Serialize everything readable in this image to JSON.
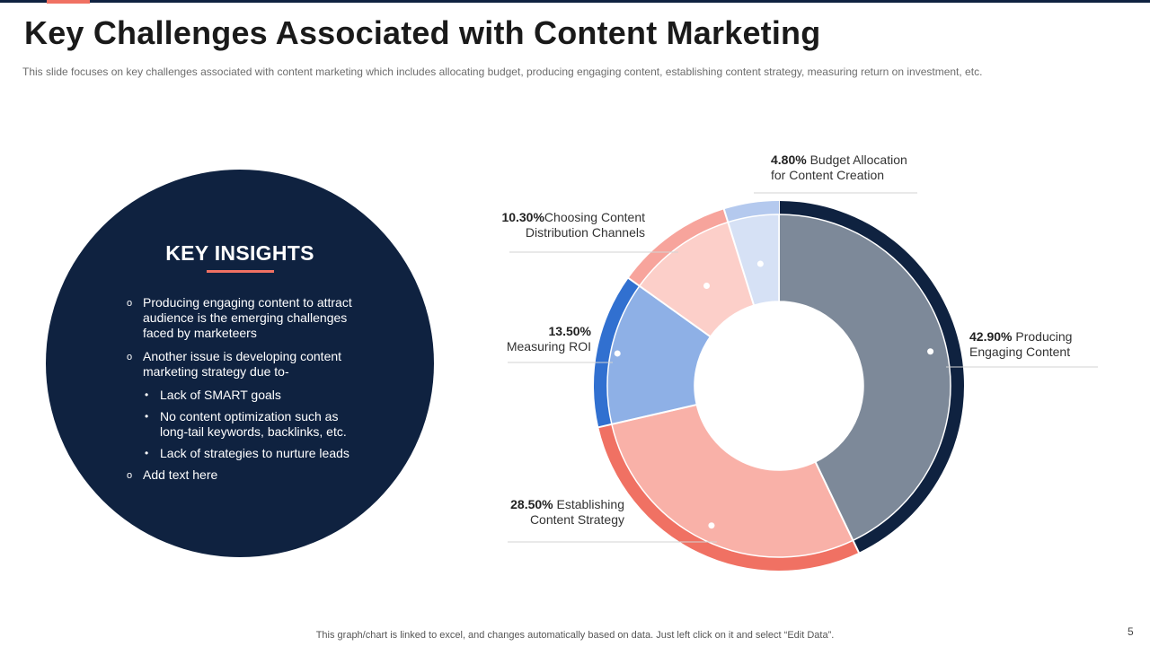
{
  "slide": {
    "title": "Key Challenges Associated with Content Marketing",
    "subtitle": "This slide focuses on key challenges associated with content marketing which includes allocating budget, producing engaging content, establishing content strategy, measuring return on investment, etc.",
    "footer": "This graph/chart is linked to excel,  and changes automatically based on data. Just left click on it and select “Edit Data”.",
    "page_number": "5",
    "colors": {
      "navy": "#0f2240",
      "coral": "#f07163"
    }
  },
  "insights": {
    "title": "KEY INSIGHTS",
    "items": [
      {
        "text": "Producing engaging content to attract audience is the emerging challenges faced by marketeers",
        "level": 1
      },
      {
        "text": "Another issue is developing content marketing strategy due to-",
        "level": 1
      },
      {
        "text": "Lack of SMART goals",
        "level": 2
      },
      {
        "text": "No content optimization such as long-tail keywords, backlinks, etc.",
        "level": 2
      },
      {
        "text": "Lack of strategies to nurture leads",
        "level": 2
      },
      {
        "text": "Add text here",
        "level": 1
      }
    ],
    "bullet_level1": "o",
    "bullet_level2": "•"
  },
  "chart_data": {
    "type": "pie",
    "categories": [
      "Producing Engaging Content",
      "Establishing Content Strategy",
      "Measuring ROI",
      "Choosing Content Distribution Channels",
      "Budget Allocation for Content Creation"
    ],
    "values": [
      42.9,
      28.5,
      13.5,
      10.3,
      4.8
    ],
    "labels": [
      {
        "pct": "42.90%",
        "lines": [
          " Producing",
          "Engaging Content"
        ]
      },
      {
        "pct": "28.50%",
        "lines": [
          " Establishing",
          "Content Strategy"
        ]
      },
      {
        "pct": "13.50%",
        "lines": [
          "",
          "Measuring ROI"
        ]
      },
      {
        "pct": "10.30%",
        "lines": [
          "Choosing Content",
          "Distribution Channels"
        ]
      },
      {
        "pct": "4.80%",
        "lines": [
          " Budget Allocation",
          "for Content Creation"
        ]
      }
    ],
    "slice_colors": [
      "#7d8999",
      "#f9b1a8",
      "#8eb0e6",
      "#fccfc9",
      "#d6e1f5"
    ],
    "ring_colors": [
      "#0f2240",
      "#f07163",
      "#3170d0",
      "#f7a49c",
      "#b4c9ee"
    ],
    "donut": true
  }
}
